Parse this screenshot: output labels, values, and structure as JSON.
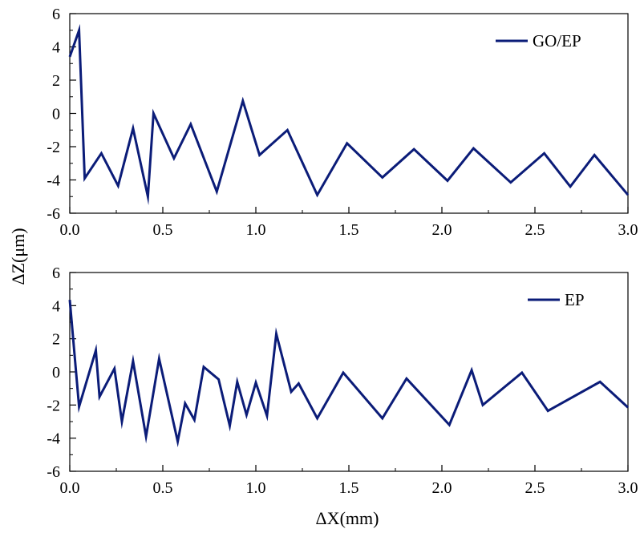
{
  "chart_data": [
    {
      "type": "line",
      "xlim": [
        0,
        3.0
      ],
      "ylim": [
        -6,
        6
      ],
      "xticks": [
        "0.0",
        "0.5",
        "1.0",
        "1.5",
        "2.0",
        "2.5",
        "3.0"
      ],
      "yticks": [
        "-6",
        "-4",
        "-2",
        "0",
        "2",
        "4",
        "6"
      ],
      "legend_position": "top-right",
      "grid": false,
      "series": [
        {
          "name": "GO/EP",
          "color": "#0b1c78",
          "x": [
            0.0,
            0.05,
            0.08,
            0.17,
            0.26,
            0.34,
            0.42,
            0.45,
            0.56,
            0.65,
            0.79,
            0.93,
            1.02,
            1.17,
            1.33,
            1.49,
            1.68,
            1.85,
            2.03,
            2.17,
            2.37,
            2.55,
            2.69,
            2.82,
            3.0
          ],
          "y": [
            3.4,
            5.0,
            -3.9,
            -2.4,
            -4.35,
            -0.9,
            -5.0,
            0.0,
            -2.7,
            -0.65,
            -4.7,
            0.75,
            -2.5,
            -1.0,
            -4.9,
            -1.8,
            -3.85,
            -2.15,
            -4.05,
            -2.1,
            -4.15,
            -2.4,
            -4.4,
            -2.5,
            -4.9
          ]
        }
      ]
    },
    {
      "type": "line",
      "xlim": [
        0,
        3.0
      ],
      "ylim": [
        -6,
        6
      ],
      "xticks": [
        "0.0",
        "0.5",
        "1.0",
        "1.5",
        "2.0",
        "2.5",
        "3.0"
      ],
      "yticks": [
        "-6",
        "-4",
        "-2",
        "0",
        "2",
        "4",
        "6"
      ],
      "legend_position": "top-right",
      "grid": false,
      "series": [
        {
          "name": "EP",
          "color": "#0b1c78",
          "x": [
            0.0,
            0.05,
            0.14,
            0.16,
            0.24,
            0.28,
            0.34,
            0.41,
            0.48,
            0.58,
            0.62,
            0.67,
            0.72,
            0.8,
            0.86,
            0.9,
            0.95,
            1.0,
            1.06,
            1.11,
            1.19,
            1.23,
            1.33,
            1.47,
            1.68,
            1.81,
            2.04,
            2.16,
            2.22,
            2.43,
            2.57,
            2.85,
            3.0
          ],
          "y": [
            4.35,
            -2.1,
            1.3,
            -1.5,
            0.2,
            -3.0,
            0.65,
            -3.9,
            0.8,
            -4.2,
            -1.9,
            -2.9,
            0.3,
            -0.45,
            -3.25,
            -0.6,
            -2.6,
            -0.65,
            -2.65,
            2.3,
            -1.2,
            -0.7,
            -2.8,
            -0.05,
            -2.8,
            -0.4,
            -3.2,
            0.1,
            -2.0,
            -0.05,
            -2.35,
            -0.6,
            -2.15
          ]
        }
      ]
    }
  ],
  "axes": {
    "ylabel": "ΔZ(μm)",
    "xlabel": "ΔX(mm)"
  }
}
